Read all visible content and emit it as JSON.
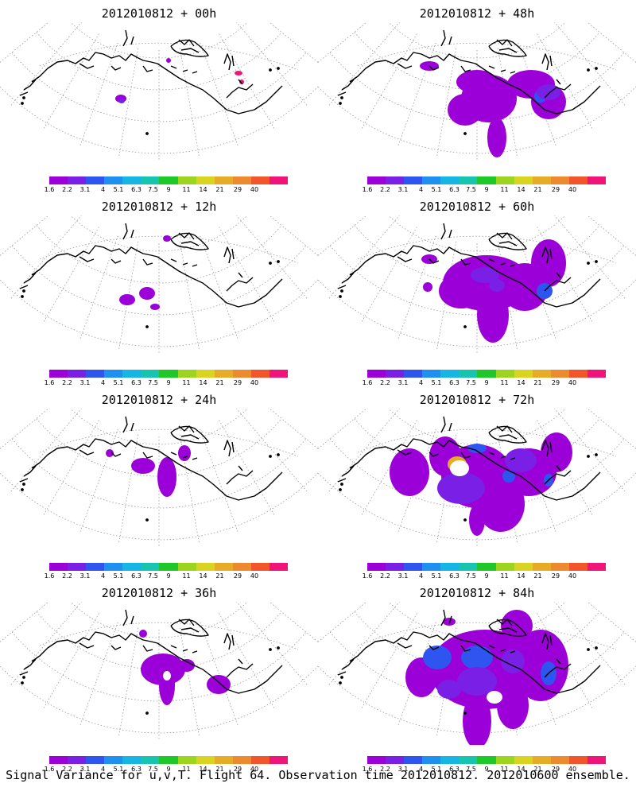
{
  "panels": [
    {
      "title": "2012010812 + 00h"
    },
    {
      "title": "2012010812 + 48h"
    },
    {
      "title": "2012010812 + 12h"
    },
    {
      "title": "2012010812 + 60h"
    },
    {
      "title": "2012010812 + 24h"
    },
    {
      "title": "2012010812 + 72h"
    },
    {
      "title": "2012010812 + 36h"
    },
    {
      "title": "2012010812 + 84h"
    }
  ],
  "colorbar": {
    "labels": [
      "1.6",
      "2.2",
      "3.1",
      "4",
      "5.1",
      "6.3",
      "7.5",
      "9",
      "11",
      "14",
      "21",
      "29",
      "40"
    ],
    "colors": [
      "#9b00d8",
      "#7a1fe6",
      "#2f55f0",
      "#1e90f0",
      "#17b5e3",
      "#16c4b0",
      "#1ec828",
      "#9dd41e",
      "#d8d420",
      "#e6ac28",
      "#ee8a2e",
      "#f2552c",
      "#f0147a"
    ]
  },
  "caption": "Signal Variance for u,v,T. Flight 64. Observation time 2012010812. 2012010600 ensemble."
}
